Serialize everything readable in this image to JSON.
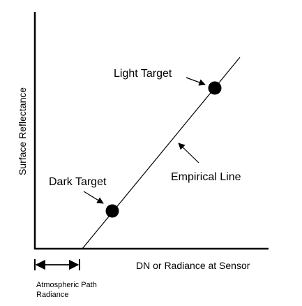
{
  "axes": {
    "ylabel": "Surface Reflectance",
    "xlabel": "DN or Radiance at Sensor"
  },
  "points": [
    {
      "label": "Light Target"
    },
    {
      "label": "Dark Target"
    }
  ],
  "line": {
    "label": "Empirical Line"
  },
  "offset": {
    "label_line1": "Atmospheric Path",
    "label_line2": "Radiance"
  },
  "colors": {
    "ink": "#000000",
    "background": "#ffffff"
  }
}
